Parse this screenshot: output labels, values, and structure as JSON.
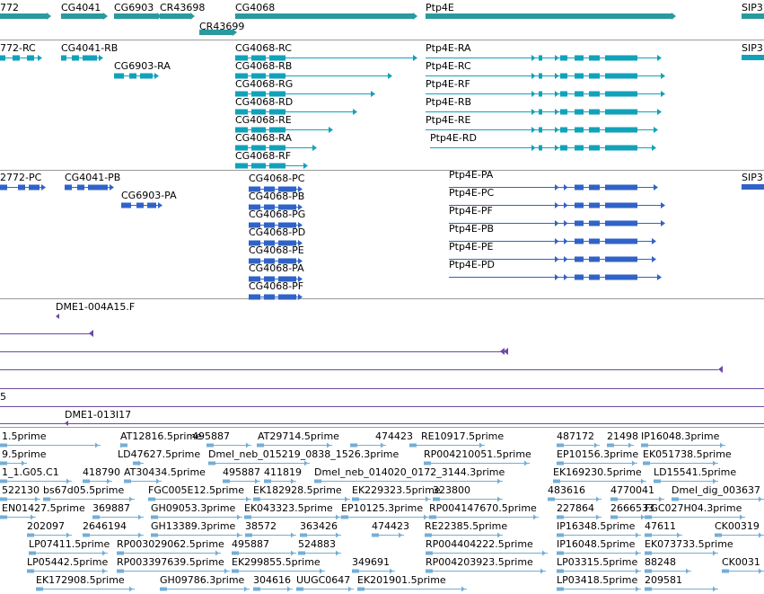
{
  "colors": {
    "gene": "#2a9a9e",
    "transcript": "#11a2ba",
    "protein": "#3063c8",
    "clone": "#6c4aa6",
    "est": "#74aed6"
  },
  "tracks": {
    "genes": [
      {
        "label": "772"
      },
      {
        "label": "CG4041"
      },
      {
        "label": "CG6903"
      },
      {
        "label": "CR43698"
      },
      {
        "label": "CR43699"
      },
      {
        "label": "CG4068"
      },
      {
        "label": "Ptp4E"
      },
      {
        "label": "SIP3"
      }
    ],
    "transcripts": [
      {
        "label": "772-RC"
      },
      {
        "label": "CG4041-RB"
      },
      {
        "label": "CG6903-RA"
      },
      {
        "label": "CG4068-RC"
      },
      {
        "label": "CG4068-RB"
      },
      {
        "label": "CG4068-RG"
      },
      {
        "label": "CG4068-RD"
      },
      {
        "label": "CG4068-RE"
      },
      {
        "label": "CG4068-RA"
      },
      {
        "label": "CG4068-RF"
      },
      {
        "label": "Ptp4E-RA"
      },
      {
        "label": "Ptp4E-RC"
      },
      {
        "label": "Ptp4E-RF"
      },
      {
        "label": "Ptp4E-RB"
      },
      {
        "label": "Ptp4E-RE"
      },
      {
        "label": "Ptp4E-RD"
      },
      {
        "label": "SIP3"
      }
    ],
    "proteins": [
      {
        "label": "2772-PC"
      },
      {
        "label": "CG4041-PB"
      },
      {
        "label": "CG6903-PA"
      },
      {
        "label": "CG4068-PC"
      },
      {
        "label": "CG4068-PB"
      },
      {
        "label": "CG4068-PG"
      },
      {
        "label": "CG4068-PD"
      },
      {
        "label": "CG4068-PE"
      },
      {
        "label": "CG4068-PA"
      },
      {
        "label": "CG4068-PF"
      },
      {
        "label": "Ptp4E-PA"
      },
      {
        "label": "Ptp4E-PC"
      },
      {
        "label": "Ptp4E-PF"
      },
      {
        "label": "Ptp4E-PB"
      },
      {
        "label": "Ptp4E-PE"
      },
      {
        "label": "Ptp4E-PD"
      },
      {
        "label": "SIP3"
      }
    ],
    "clones": [
      {
        "label": "DME1-004A15.F"
      },
      {
        "label": "5"
      },
      {
        "label": "DME1-013I17"
      }
    ],
    "ests": [
      "1.5prime",
      "AT12816.5prime",
      "495887",
      "AT29714.5prime",
      "474423",
      "RE10917.5prime",
      "487172",
      "21498",
      "IP16048.3prime",
      "9.5prime",
      "LD47627.5prime",
      "Dmel_neb_015219_0838_1526.3prime",
      "RP004210051.5prime",
      "EP10156.3prime",
      "EK051738.5prime",
      "1_1.G05.C1",
      "418790",
      "AT30434.5prime",
      "495887",
      "411819",
      "Dmel_neb_014020_0172_3144.3prime",
      "EK169230.5prime",
      "LD15541.5prime",
      "522130",
      "bs67d05.5prime",
      "FGC005E12.5prime",
      "EK182928.5prime",
      "EK229323.5prime",
      "323800",
      "483616",
      "4770041",
      "Dmel_dig_003637",
      "EN01427.5prime",
      "369887",
      "GH09053.3prime",
      "EK043323.5prime",
      "EP10125.3prime",
      "RP004147670.5prime",
      "227864",
      "2666533",
      "FGC027H04.3prime",
      "202097",
      "2646194",
      "GH13389.3prime",
      "38572",
      "363426",
      "474423",
      "RE22385.5prime",
      "IP16348.5prime",
      "47611",
      "CK00319",
      "LP07411.5prime",
      "RP003029062.5prime",
      "495887",
      "524883",
      "RP004404222.5prime",
      "IP16048.5prime",
      "EK073733.5prime",
      "LP05442.5prime",
      "RP003397639.5prime",
      "EK299855.5prime",
      "349691",
      "RP004203923.5prime",
      "LP03315.5prime",
      "88248",
      "CK0031",
      "EK172908.5prime",
      "GH09786.3prime",
      "304616",
      "UUGC0647",
      "EK201901.5prime",
      "LP03418.5prime",
      "209581"
    ]
  }
}
